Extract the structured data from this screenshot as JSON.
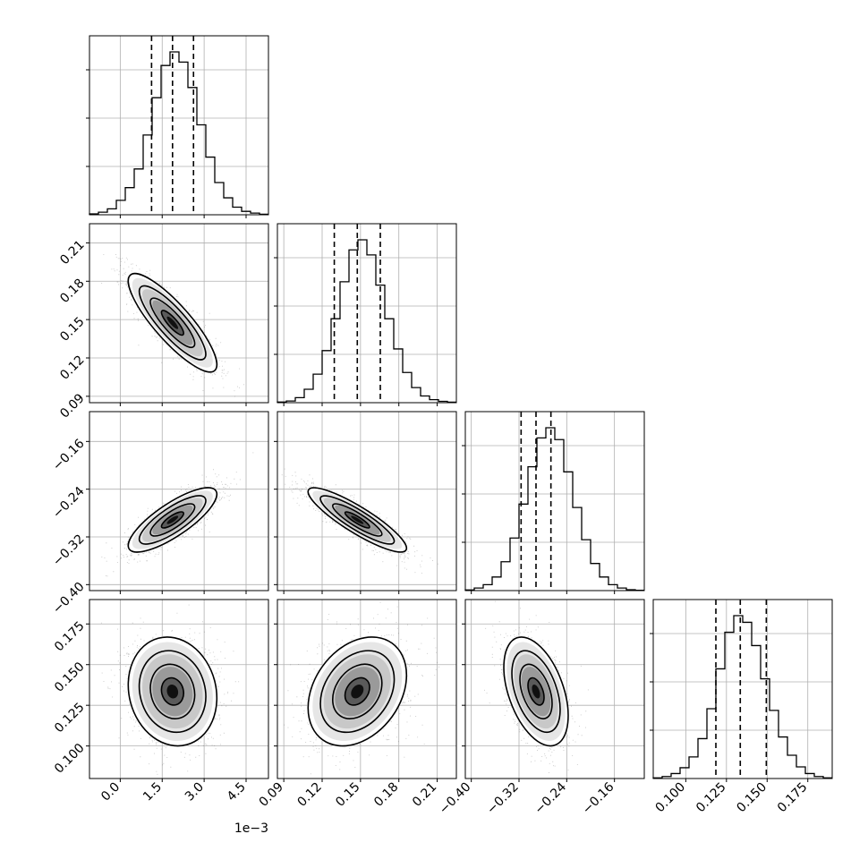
{
  "chart_data": {
    "type": "corner",
    "variables": [
      {
        "range": [
          -0.0011,
          0.0053
        ],
        "ticks": [
          0.0,
          0.0015,
          0.003,
          0.0045
        ],
        "tick_labels": [
          "0.0",
          "1.5",
          "3.0",
          "4.5"
        ],
        "offset_label": "1e−3",
        "quantiles": [
          0.00112,
          0.00187,
          0.00262
        ],
        "hist": [
          0.5,
          1.5,
          3.5,
          8.5,
          16,
          27,
          47,
          69,
          88,
          96,
          90,
          75,
          53,
          34,
          19,
          10,
          4.5,
          2,
          1,
          0.3
        ]
      },
      {
        "range": [
          0.085,
          0.225
        ],
        "ticks": [
          0.09,
          0.12,
          0.15,
          0.18,
          0.21
        ],
        "tick_labels": [
          "0.09",
          "0.12",
          "0.15",
          "0.18",
          "0.21"
        ],
        "offset_label": "",
        "quantiles": [
          0.1295,
          0.1475,
          0.1655
        ],
        "hist": [
          0.4,
          1,
          3,
          8,
          17,
          31,
          50,
          72,
          91,
          97,
          88,
          70,
          50,
          32,
          18,
          9,
          4,
          1.8,
          0.8,
          0.3
        ]
      },
      {
        "range": [
          -0.41,
          -0.11
        ],
        "ticks": [
          -0.4,
          -0.32,
          -0.24,
          -0.16
        ],
        "tick_labels": [
          "−0.40",
          "−0.32",
          "−0.24",
          "−0.16"
        ],
        "offset_label": "",
        "quantiles": [
          -0.3165,
          -0.2915,
          -0.2665
        ],
        "hist": [
          0.4,
          1.5,
          3.5,
          8,
          17,
          31,
          51,
          73,
          90,
          96,
          89,
          70,
          49,
          30,
          16,
          8,
          3.5,
          1.5,
          0.5,
          0.2
        ]
      },
      {
        "range": [
          0.08,
          0.19
        ],
        "ticks": [
          0.1,
          0.125,
          0.15,
          0.175
        ],
        "tick_labels": [
          "0.100",
          "0.125",
          "0.150",
          "0.175"
        ],
        "offset_label": "",
        "quantiles": [
          0.1185,
          0.1335,
          0.1495
        ],
        "hist": [
          0.4,
          1.2,
          3,
          6.5,
          13,
          24,
          42,
          66,
          88,
          98,
          94,
          80,
          60,
          41,
          25,
          14,
          7,
          3,
          1.2,
          0.4
        ]
      }
    ],
    "pairs": [
      {
        "row": 1,
        "col": 0,
        "mean": [
          0.00187,
          0.1475
        ],
        "sd": [
          0.00072,
          0.0175
        ],
        "rho": -0.85
      },
      {
        "row": 2,
        "col": 0,
        "mean": [
          0.00187,
          -0.2915
        ],
        "sd": [
          0.00072,
          0.0245
        ],
        "rho": 0.8
      },
      {
        "row": 2,
        "col": 1,
        "mean": [
          0.1475,
          -0.2915
        ],
        "sd": [
          0.0175,
          0.0245
        ],
        "rho": -0.88
      },
      {
        "row": 3,
        "col": 0,
        "mean": [
          0.00187,
          0.1335
        ],
        "sd": [
          0.00072,
          0.0152
        ],
        "rho": -0.12
      },
      {
        "row": 3,
        "col": 1,
        "mean": [
          0.1475,
          0.1335
        ],
        "sd": [
          0.0175,
          0.0152
        ],
        "rho": 0.3
      },
      {
        "row": 3,
        "col": 2,
        "mean": [
          -0.2915,
          0.1335
        ],
        "sd": [
          0.0245,
          0.0152
        ],
        "rho": -0.45
      }
    ],
    "contour_levels_sigma": [
      0.5,
      1.0,
      1.5,
      2.0
    ],
    "grid": true,
    "colors": {
      "line": "#000000",
      "grid": "#b0b0b0",
      "points": "#555555"
    }
  }
}
